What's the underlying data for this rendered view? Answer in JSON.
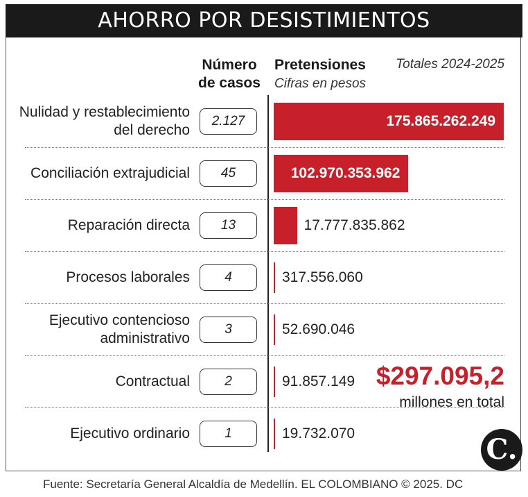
{
  "title": "AHORRO POR DESISTIMIENTOS",
  "headers": {
    "cases_line1": "Número",
    "cases_line2": "de casos",
    "pretensiones": "Pretensiones",
    "pretensiones_sub": "Cifras en pesos",
    "totals": "Totales 2024-2025"
  },
  "chart_data": {
    "type": "bar",
    "orientation": "horizontal",
    "title": "AHORRO POR DESISTIMIENTOS",
    "categories": [
      [
        "Nulidad y restablecimiento",
        "del derecho"
      ],
      [
        "Conciliación extrajudicial"
      ],
      [
        "Reparación directa"
      ],
      [
        "Procesos laborales"
      ],
      [
        "Ejecutivo contencioso",
        "administrativo"
      ],
      [
        "Contractual"
      ],
      [
        "Ejecutivo ordinario"
      ]
    ],
    "cases": [
      "2.127",
      "45",
      "13",
      "4",
      "3",
      "2",
      "1"
    ],
    "values": [
      175865262249,
      102970353962,
      17777835862,
      317556060,
      52690046,
      91857149,
      19732070
    ],
    "value_labels": [
      "175.865.262.249",
      "102.970.353.962",
      "17.777.835.862",
      "317.556.060",
      "52.690.046",
      "91.857.149",
      "19.732.070"
    ],
    "bar_color": "#c8202a"
  },
  "total": {
    "value": "$297.095,2",
    "label": "millones en total"
  },
  "logo_text": "C.",
  "source": "Fuente: Secretaría General Alcaldía de Medellín. EL COLOMBIANO © 2025. DC"
}
